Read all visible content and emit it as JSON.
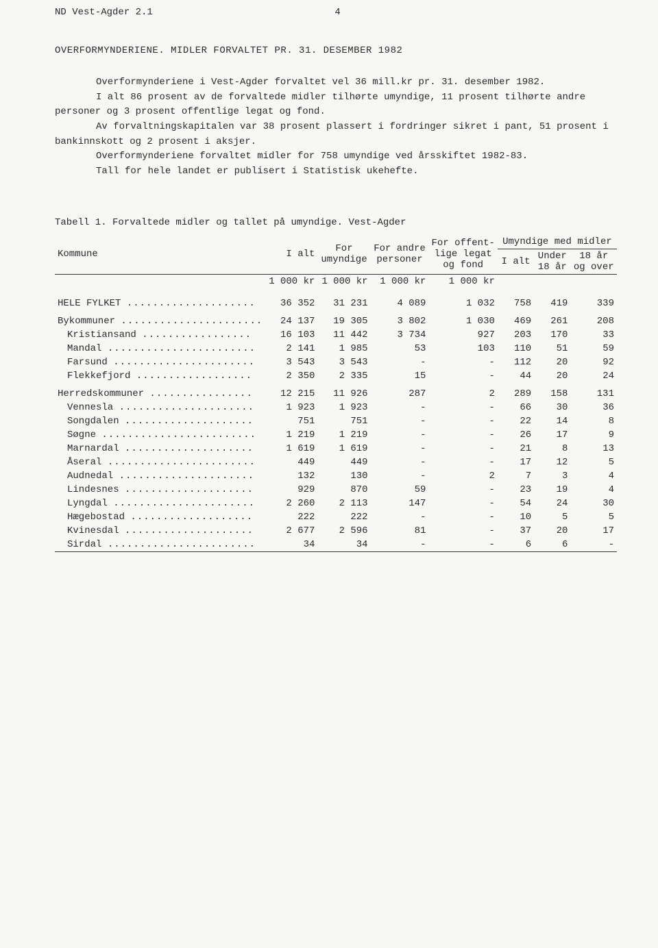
{
  "header": {
    "doc_id": "ND Vest-Agder 2.1",
    "page_number": "4"
  },
  "title": "OVERFORMYNDERIENE.  MIDLER FORVALTET PR. 31. DESEMBER 1982",
  "paragraphs": {
    "p1": "Overformynderiene i Vest-Agder forvaltet vel 36 mill.kr pr. 31. desember 1982.",
    "p2": "I alt 86 prosent av de forvaltede midler tilhørte umyndige, 11 prosent tilhørte andre personer og 3 prosent offentlige legat og fond.",
    "p3": "Av forvaltningskapitalen var 38 prosent plassert i fordringer sikret i pant, 51 prosent i bankinnskott og 2 prosent i aksjer.",
    "p4": "Overformynderiene forvaltet midler for 758 umyndige ved årsskiftet 1982-83.",
    "p5": "Tall for hele landet er publisert i Statistisk ukehefte."
  },
  "table": {
    "caption": "Tabell 1.  Forvaltede midler og tallet på umyndige.  Vest-Agder",
    "headers": {
      "kommune": "Kommune",
      "ialt": "I alt",
      "for_umyndige": "For umyndige",
      "for_andre": "For andre personer",
      "for_offentlige": "For offent- lige legat og fond",
      "umyndige_med_midler": "Umyndige med midler",
      "um_ialt": "I alt",
      "um_under18": "Under 18 år",
      "um_18over": "18 år og over"
    },
    "unit": "1 000 kr",
    "rows": [
      {
        "label": "HELE FYLKET",
        "class": "section-gap",
        "dots": "....................",
        "vals": [
          "36 352",
          "31 231",
          "4 089",
          "1 032",
          "758",
          "419",
          "339"
        ]
      },
      {
        "label": "Bykommuner",
        "class": "group-row",
        "dots": "......................",
        "vals": [
          "24 137",
          "19 305",
          "3 802",
          "1 030",
          "469",
          "261",
          "208"
        ]
      },
      {
        "label": "Kristiansand",
        "class": "sub",
        "dots": ".................",
        "vals": [
          "16 103",
          "11 442",
          "3 734",
          "927",
          "203",
          "170",
          "33"
        ]
      },
      {
        "label": "Mandal",
        "class": "sub",
        "dots": ".......................",
        "vals": [
          "2 141",
          "1 985",
          "53",
          "103",
          "110",
          "51",
          "59"
        ]
      },
      {
        "label": "Farsund",
        "class": "sub",
        "dots": "......................",
        "vals": [
          "3 543",
          "3 543",
          "-",
          "-",
          "112",
          "20",
          "92"
        ]
      },
      {
        "label": "Flekkefjord",
        "class": "sub",
        "dots": "..................",
        "vals": [
          "2 350",
          "2 335",
          "15",
          "-",
          "44",
          "20",
          "24"
        ]
      },
      {
        "label": "Herredskommuner",
        "class": "group-row",
        "dots": "................",
        "vals": [
          "12 215",
          "11 926",
          "287",
          "2",
          "289",
          "158",
          "131"
        ]
      },
      {
        "label": "Vennesla",
        "class": "sub",
        "dots": ".....................",
        "vals": [
          "1 923",
          "1 923",
          "-",
          "-",
          "66",
          "30",
          "36"
        ]
      },
      {
        "label": "Songdalen",
        "class": "sub",
        "dots": "....................",
        "vals": [
          "751",
          "751",
          "-",
          "-",
          "22",
          "14",
          "8"
        ]
      },
      {
        "label": "Søgne",
        "class": "sub",
        "dots": "........................",
        "vals": [
          "1 219",
          "1 219",
          "-",
          "-",
          "26",
          "17",
          "9"
        ]
      },
      {
        "label": "Marnardal",
        "class": "sub",
        "dots": "....................",
        "vals": [
          "1 619",
          "1 619",
          "-",
          "-",
          "21",
          "8",
          "13"
        ]
      },
      {
        "label": "Åseral",
        "class": "sub",
        "dots": ".......................",
        "vals": [
          "449",
          "449",
          "-",
          "-",
          "17",
          "12",
          "5"
        ]
      },
      {
        "label": "Audnedal",
        "class": "sub",
        "dots": ".....................",
        "vals": [
          "132",
          "130",
          "-",
          "2",
          "7",
          "3",
          "4"
        ]
      },
      {
        "label": "Lindesnes",
        "class": "sub",
        "dots": "....................",
        "vals": [
          "929",
          "870",
          "59",
          "-",
          "23",
          "19",
          "4"
        ]
      },
      {
        "label": "Lyngdal",
        "class": "sub",
        "dots": "......................",
        "vals": [
          "2 260",
          "2 113",
          "147",
          "-",
          "54",
          "24",
          "30"
        ]
      },
      {
        "label": "Hægebostad",
        "class": "sub",
        "dots": "...................",
        "vals": [
          "222",
          "222",
          "-",
          "-",
          "10",
          "5",
          "5"
        ]
      },
      {
        "label": "Kvinesdal",
        "class": "sub",
        "dots": "....................",
        "vals": [
          "2 677",
          "2 596",
          "81",
          "-",
          "37",
          "20",
          "17"
        ]
      },
      {
        "label": "Sirdal",
        "class": "sub",
        "dots": ".......................",
        "vals": [
          "34",
          "34",
          "-",
          "-",
          "6",
          "6",
          "-"
        ]
      }
    ]
  }
}
